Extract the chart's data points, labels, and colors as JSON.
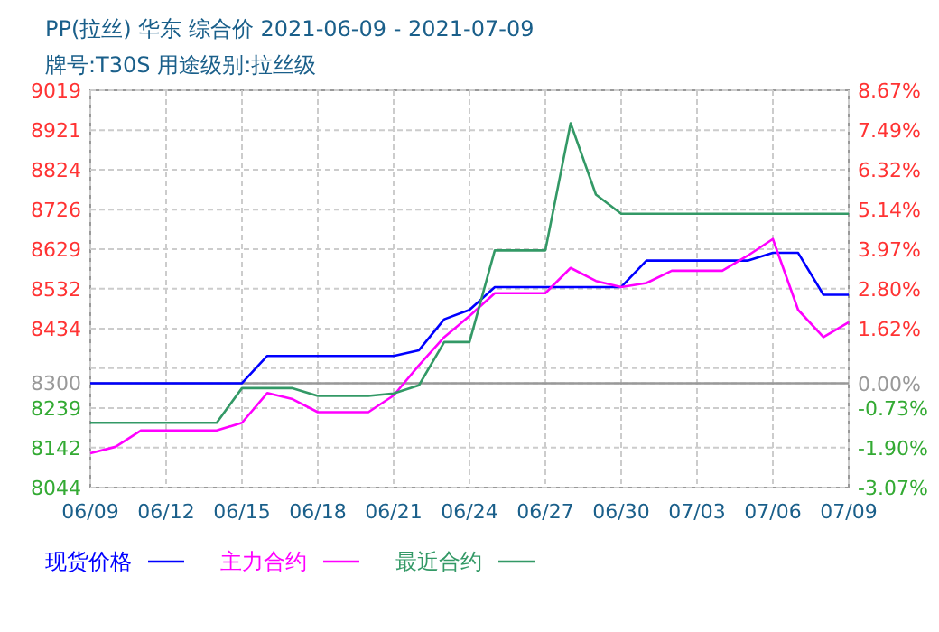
{
  "chart_data": {
    "type": "line",
    "title": "PP(拉丝) 华东 综合价 2021-06-09 - 2021-07-09",
    "subtitle": "牌号:T30S 用途级别:拉丝级",
    "x": [
      "2021-06-09",
      "2021-06-10",
      "2021-06-11",
      "2021-06-12",
      "2021-06-13",
      "2021-06-14",
      "2021-06-15",
      "2021-06-16",
      "2021-06-17",
      "2021-06-18",
      "2021-06-19",
      "2021-06-20",
      "2021-06-21",
      "2021-06-22",
      "2021-06-23",
      "2021-06-24",
      "2021-06-25",
      "2021-06-26",
      "2021-06-27",
      "2021-06-28",
      "2021-06-29",
      "2021-06-30",
      "2021-07-01",
      "2021-07-02",
      "2021-07-03",
      "2021-07-04",
      "2021-07-05",
      "2021-07-06",
      "2021-07-07",
      "2021-07-08",
      "2021-07-09"
    ],
    "series": [
      {
        "name": "现货价格",
        "color": "#0000ff",
        "values": [
          8300,
          8300,
          8300,
          8300,
          8300,
          8300,
          8300,
          8367,
          8367,
          8367,
          8367,
          8367,
          8367,
          8381,
          8457,
          8480,
          8536,
          8536,
          8536,
          8536,
          8536,
          8536,
          8601,
          8601,
          8601,
          8601,
          8601,
          8620,
          8620,
          8517,
          8517
        ]
      },
      {
        "name": "主力合约",
        "color": "#ff00ff",
        "values": [
          8128,
          8144,
          8184,
          8184,
          8184,
          8184,
          8203,
          8276,
          8261,
          8229,
          8229,
          8229,
          8270,
          8344,
          8413,
          8465,
          8521,
          8521,
          8521,
          8583,
          8551,
          8536,
          8546,
          8576,
          8576,
          8576,
          8613,
          8654,
          8480,
          8413,
          8450
        ]
      },
      {
        "name": "最近合约",
        "color": "#339966",
        "values": [
          8203,
          8203,
          8203,
          8203,
          8203,
          8203,
          8288,
          8288,
          8288,
          8269,
          8269,
          8269,
          8275,
          8295,
          8401,
          8401,
          8626,
          8626,
          8626,
          8938,
          8763,
          8716,
          8716,
          8716,
          8716,
          8716,
          8716,
          8716,
          8716,
          8716,
          8716
        ]
      }
    ],
    "xlim": [
      "2021-06-09",
      "2021-07-09"
    ],
    "xticks": [
      {
        "value": "2021-06-09",
        "label": "06/09"
      },
      {
        "value": "2021-06-12",
        "label": "06/12"
      },
      {
        "value": "2021-06-15",
        "label": "06/15"
      },
      {
        "value": "2021-06-18",
        "label": "06/18"
      },
      {
        "value": "2021-06-21",
        "label": "06/21"
      },
      {
        "value": "2021-06-24",
        "label": "06/24"
      },
      {
        "value": "2021-06-27",
        "label": "06/27"
      },
      {
        "value": "2021-06-30",
        "label": "06/30"
      },
      {
        "value": "2021-07-03",
        "label": "07/03"
      },
      {
        "value": "2021-07-06",
        "label": "07/06"
      },
      {
        "value": "2021-07-09",
        "label": "07/09"
      }
    ],
    "ylim": [
      8044,
      9019
    ],
    "yticks": [
      9019,
      8921,
      8824,
      8726,
      8629,
      8532,
      8434,
      {
        "value": 8337,
        "label": null
      },
      8300,
      8239,
      8142,
      8044
    ],
    "y2lim": [
      -3.07,
      8.67
    ],
    "y2ticks": [
      {
        "value": 8.67,
        "label": "8.67%"
      },
      {
        "value": 7.49,
        "label": "7.49%"
      },
      {
        "value": 6.32,
        "label": "6.32%"
      },
      {
        "value": 5.14,
        "label": "5.14%"
      },
      {
        "value": 3.97,
        "label": "3.97%"
      },
      {
        "value": 2.8,
        "label": "2.80%"
      },
      {
        "value": 1.62,
        "label": "1.62%"
      },
      {
        "value": 0,
        "label": "0.00%"
      },
      {
        "value": -0.73,
        "label": "-0.73%"
      },
      {
        "value": -1.9,
        "label": "-1.90%"
      },
      {
        "value": -3.07,
        "label": "-3.07%"
      }
    ],
    "ref_lines": [
      {
        "axis": "y",
        "value": 8300,
        "color": "#999999"
      }
    ],
    "grid": true,
    "legend": "bottom",
    "marker": "none",
    "line_style": "solid"
  }
}
